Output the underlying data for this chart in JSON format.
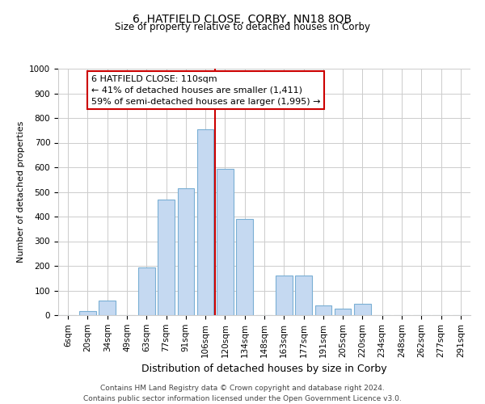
{
  "title": "6, HATFIELD CLOSE, CORBY, NN18 8QB",
  "subtitle": "Size of property relative to detached houses in Corby",
  "xlabel": "Distribution of detached houses by size in Corby",
  "ylabel": "Number of detached properties",
  "bar_labels": [
    "6sqm",
    "20sqm",
    "34sqm",
    "49sqm",
    "63sqm",
    "77sqm",
    "91sqm",
    "106sqm",
    "120sqm",
    "134sqm",
    "148sqm",
    "163sqm",
    "177sqm",
    "191sqm",
    "205sqm",
    "220sqm",
    "234sqm",
    "248sqm",
    "262sqm",
    "277sqm",
    "291sqm"
  ],
  "bar_values": [
    0,
    15,
    60,
    0,
    195,
    470,
    515,
    755,
    595,
    390,
    0,
    160,
    160,
    40,
    25,
    45,
    0,
    0,
    0,
    0,
    0
  ],
  "bar_color": "#c5d9f1",
  "bar_edge_color": "#7aafd4",
  "vline_x_index": 7,
  "vline_color": "#cc0000",
  "ylim": [
    0,
    1000
  ],
  "yticks": [
    0,
    100,
    200,
    300,
    400,
    500,
    600,
    700,
    800,
    900,
    1000
  ],
  "annotation_title": "6 HATFIELD CLOSE: 110sqm",
  "annotation_line1": "← 41% of detached houses are smaller (1,411)",
  "annotation_line2": "59% of semi-detached houses are larger (1,995) →",
  "footer_line1": "Contains HM Land Registry data © Crown copyright and database right 2024.",
  "footer_line2": "Contains public sector information licensed under the Open Government Licence v3.0.",
  "bg_color": "#ffffff",
  "grid_color": "#cccccc",
  "title_fontsize": 10,
  "subtitle_fontsize": 8.5,
  "ylabel_fontsize": 8,
  "xlabel_fontsize": 9,
  "tick_fontsize": 7.5,
  "ann_fontsize": 8,
  "footer_fontsize": 6.5
}
